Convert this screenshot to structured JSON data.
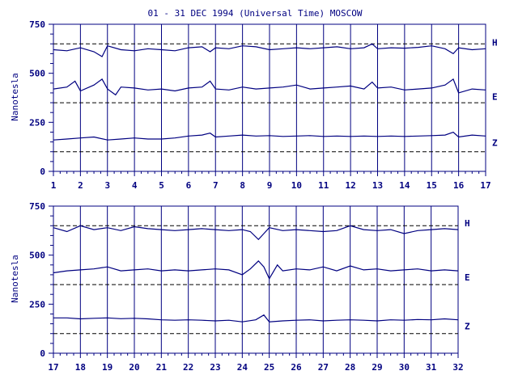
{
  "chart_data": {
    "type": "line",
    "title": "01 - 31 DEC 1994 (Universal Time) MOSCOW",
    "ylabel": "Nanotesla",
    "color": "#000080",
    "panels": [
      {
        "xlim": [
          1,
          17
        ],
        "xticks": [
          "1",
          "2",
          "3",
          "4",
          "5",
          "6",
          "7",
          "8",
          "9",
          "10",
          "11",
          "12",
          "13",
          "14",
          "15",
          "16",
          "17"
        ],
        "ylim": [
          0,
          750
        ],
        "yticks": [
          "0",
          "250",
          "500",
          "750"
        ],
        "reference_lines": [
          650,
          350,
          100
        ],
        "series": [
          {
            "name": "H",
            "x": [
              1,
              1.5,
              2,
              2.5,
              2.8,
              3,
              3.5,
              4,
              4.5,
              5,
              5.5,
              6,
              6.5,
              6.8,
              7,
              7.5,
              8,
              8.5,
              9,
              9.5,
              10,
              10.5,
              11,
              11.5,
              12,
              12.5,
              12.8,
              13,
              13.5,
              14,
              14.5,
              15,
              15.5,
              15.8,
              16,
              16.5,
              17
            ],
            "values": [
              620,
              615,
              630,
              610,
              585,
              640,
              620,
              615,
              625,
              620,
              615,
              630,
              635,
              610,
              630,
              625,
              640,
              635,
              620,
              625,
              630,
              625,
              630,
              635,
              625,
              630,
              650,
              625,
              630,
              628,
              632,
              640,
              625,
              600,
              630,
              620,
              625
            ]
          },
          {
            "name": "E",
            "x": [
              1,
              1.5,
              1.8,
              2,
              2.5,
              2.8,
              3,
              3.3,
              3.5,
              4,
              4.5,
              5,
              5.5,
              6,
              6.5,
              6.8,
              7,
              7.5,
              8,
              8.5,
              9,
              9.5,
              10,
              10.5,
              11,
              11.5,
              12,
              12.5,
              12.8,
              13,
              13.5,
              14,
              14.5,
              15,
              15.5,
              15.8,
              16,
              16.5,
              17
            ],
            "values": [
              420,
              430,
              460,
              410,
              440,
              470,
              420,
              390,
              430,
              425,
              415,
              420,
              410,
              425,
              430,
              460,
              420,
              415,
              430,
              420,
              425,
              430,
              440,
              420,
              425,
              430,
              435,
              420,
              455,
              425,
              430,
              415,
              420,
              425,
              440,
              470,
              400,
              420,
              415
            ]
          },
          {
            "name": "Z",
            "x": [
              1,
              1.5,
              2,
              2.5,
              3,
              3.5,
              4,
              4.5,
              5,
              5.5,
              6,
              6.5,
              6.8,
              7,
              7.5,
              8,
              8.5,
              9,
              9.5,
              10,
              10.5,
              11,
              11.5,
              12,
              12.5,
              13,
              13.5,
              14,
              14.5,
              15,
              15.5,
              15.8,
              16,
              16.5,
              17
            ],
            "values": [
              160,
              165,
              170,
              175,
              160,
              165,
              170,
              165,
              165,
              170,
              180,
              185,
              195,
              175,
              180,
              185,
              180,
              182,
              178,
              180,
              182,
              178,
              180,
              178,
              180,
              178,
              180,
              178,
              180,
              182,
              185,
              200,
              175,
              185,
              180
            ]
          }
        ]
      },
      {
        "xlim": [
          17,
          32
        ],
        "xticks": [
          "17",
          "18",
          "19",
          "20",
          "21",
          "22",
          "23",
          "24",
          "25",
          "26",
          "27",
          "28",
          "29",
          "30",
          "31",
          "32"
        ],
        "ylim": [
          0,
          750
        ],
        "yticks": [
          "0",
          "250",
          "500",
          "750"
        ],
        "reference_lines": [
          650,
          350,
          100
        ],
        "series": [
          {
            "name": "H",
            "x": [
              17,
              17.5,
              18,
              18.5,
              19,
              19.5,
              20,
              20.5,
              21,
              21.5,
              22,
              22.5,
              23,
              23.5,
              24,
              24.3,
              24.6,
              24.8,
              25,
              25.5,
              26,
              26.5,
              27,
              27.5,
              28,
              28.5,
              29,
              29.5,
              30,
              30.5,
              31,
              31.5,
              32
            ],
            "values": [
              640,
              620,
              650,
              630,
              640,
              625,
              645,
              635,
              630,
              625,
              630,
              635,
              630,
              625,
              630,
              620,
              580,
              610,
              640,
              625,
              630,
              625,
              620,
              625,
              650,
              630,
              625,
              630,
              610,
              625,
              630,
              635,
              630
            ]
          },
          {
            "name": "E",
            "x": [
              17,
              17.5,
              18,
              18.5,
              19,
              19.5,
              20,
              20.5,
              21,
              21.5,
              22,
              22.5,
              23,
              23.5,
              24,
              24.3,
              24.6,
              24.8,
              25,
              25.3,
              25.5,
              26,
              26.5,
              27,
              27.5,
              28,
              28.5,
              29,
              29.5,
              30,
              30.5,
              31,
              31.5,
              32
            ],
            "values": [
              410,
              420,
              425,
              430,
              440,
              420,
              425,
              430,
              420,
              425,
              420,
              425,
              430,
              425,
              400,
              430,
              470,
              440,
              380,
              450,
              420,
              430,
              425,
              440,
              420,
              445,
              425,
              430,
              420,
              425,
              430,
              420,
              425,
              420
            ]
          },
          {
            "name": "Z",
            "x": [
              17,
              17.5,
              18,
              18.5,
              19,
              19.5,
              20,
              20.5,
              21,
              21.5,
              22,
              22.5,
              23,
              23.5,
              24,
              24.5,
              24.8,
              25,
              25.5,
              26,
              26.5,
              27,
              27.5,
              28,
              28.5,
              29,
              29.5,
              30,
              30.5,
              31,
              31.5,
              32
            ],
            "values": [
              180,
              180,
              175,
              178,
              180,
              176,
              178,
              175,
              170,
              168,
              170,
              168,
              165,
              168,
              160,
              170,
              195,
              160,
              165,
              168,
              170,
              165,
              168,
              170,
              168,
              165,
              170,
              168,
              172,
              170,
              175,
              170
            ]
          }
        ]
      }
    ]
  }
}
